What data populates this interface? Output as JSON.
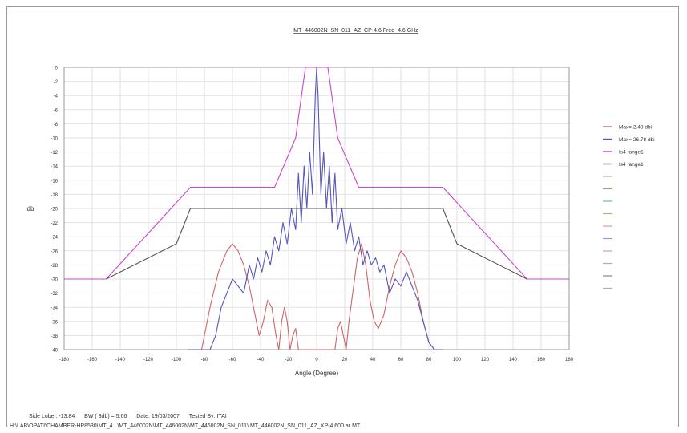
{
  "chart_data": {
    "type": "line",
    "title": "MT_446002N_SN_011_AZ_CP-4.6 Freq_4.6 GHz",
    "xlabel": "Angle (Degree)",
    "ylabel": "db",
    "xlim": [
      -180,
      180
    ],
    "ylim": [
      -40,
      0
    ],
    "xticks": [
      -180,
      -160,
      -140,
      -120,
      -100,
      -80,
      -60,
      -40,
      -20,
      0,
      20,
      40,
      60,
      80,
      100,
      120,
      140,
      160,
      180
    ],
    "yticks": [
      0,
      -2,
      -4,
      -6,
      -8,
      -10,
      -12,
      -14,
      -16,
      -18,
      -20,
      -22,
      -24,
      -26,
      -28,
      -30,
      -32,
      -34,
      -36,
      -38,
      -40
    ],
    "grid": true,
    "legend_position": "right",
    "series": [
      {
        "name": "Max= 2.48 dbi",
        "color": "#cc6666",
        "x": [
          -90,
          -82,
          -76,
          -70,
          -64,
          -60,
          -56,
          -52,
          -48,
          -44,
          -41,
          -38,
          -35,
          -32,
          -29,
          -27,
          -25,
          -23,
          -21,
          -19,
          -17,
          -15,
          -13,
          -11,
          -8,
          -5,
          -2,
          0,
          2,
          5,
          8,
          11,
          13,
          15,
          17,
          19,
          21,
          23,
          25,
          27,
          29,
          32,
          35,
          38,
          41,
          44,
          48,
          52,
          56,
          60,
          64,
          68,
          72,
          76,
          80,
          84,
          90
        ],
        "y": [
          -40,
          -40,
          -34,
          -29,
          -26,
          -25,
          -26,
          -28,
          -31,
          -35,
          -38,
          -36,
          -33,
          -34,
          -38,
          -40,
          -36,
          -34,
          -36,
          -40,
          -38,
          -37,
          -40,
          -40,
          -40,
          -40,
          -40,
          -40,
          -40,
          -40,
          -40,
          -40,
          -40,
          -37,
          -36,
          -38,
          -40,
          -36,
          -33,
          -30,
          -27,
          -25,
          -28,
          -33,
          -36,
          -37,
          -35,
          -31,
          -28,
          -26,
          -27,
          -29,
          -32,
          -36,
          -39,
          -40,
          -40
        ]
      },
      {
        "name": "Max= 26.78 dbi",
        "color": "#5555bb",
        "x": [
          -92,
          -88,
          -84,
          -80,
          -76,
          -72,
          -68,
          -64,
          -60,
          -56,
          -52,
          -48,
          -45,
          -42,
          -39,
          -36,
          -33,
          -30,
          -27,
          -24,
          -21,
          -18,
          -15,
          -13,
          -11,
          -9,
          -7,
          -5,
          -3,
          -1,
          0,
          1,
          3,
          5,
          7,
          9,
          11,
          13,
          15,
          18,
          21,
          24,
          27,
          30,
          33,
          36,
          39,
          42,
          45,
          48,
          52,
          56,
          60,
          64,
          68,
          72,
          76,
          80,
          84,
          90
        ],
        "y": [
          -40,
          -40,
          -40,
          -40,
          -40,
          -38,
          -34,
          -32,
          -30,
          -31,
          -32,
          -28,
          -30,
          -27,
          -29,
          -26,
          -28,
          -24,
          -26,
          -22,
          -25,
          -20,
          -23,
          -15,
          -22,
          -14,
          -20,
          -12,
          -18,
          -4,
          0,
          -4,
          -18,
          -12,
          -20,
          -14,
          -22,
          -15,
          -23,
          -20,
          -25,
          -22,
          -26,
          -24,
          -28,
          -26,
          -28,
          -27,
          -29,
          -28,
          -32,
          -30,
          -31,
          -29,
          -31,
          -33,
          -36,
          -39,
          -40,
          -40
        ]
      },
      {
        "name": "Is4 range1",
        "color": "#cc44cc",
        "x": [
          -180,
          -150,
          -90,
          -30,
          -15,
          -8,
          8,
          15,
          30,
          90,
          150,
          180
        ],
        "y": [
          -30,
          -30,
          -17,
          -17,
          -10,
          0,
          0,
          -10,
          -17,
          -17,
          -30,
          -30
        ]
      },
      {
        "name": "Is4 range1",
        "color": "#555555",
        "x": [
          -150,
          -100,
          -90,
          90,
          100,
          150
        ],
        "y": [
          -30,
          -25,
          -20,
          -20,
          -25,
          -30
        ]
      }
    ],
    "legend_placeholders": [
      "#dd99bb",
      "#99aa77",
      "#77bbaa",
      "#aabb77",
      "#dd99bb",
      "#9999dd",
      "#dd99bb",
      "#99bbaa",
      "#888888",
      "#aabb88"
    ]
  },
  "footer": {
    "side_lobe": "Side Lobe : -13.84",
    "beamwidth": "BW ( 3db) = 5.66",
    "date": "Date: 19/03/2007",
    "tested_by": "Tested By: ITAI",
    "path": "H:\\LAB\\OPATI\\CHAMBER-HP8530\\MT_4...\\MT_446002N\\MT_446002N\\MT_446002N_SN_011\\ MT_446002N_SN_011_AZ_XP-4.600.ar MT"
  }
}
